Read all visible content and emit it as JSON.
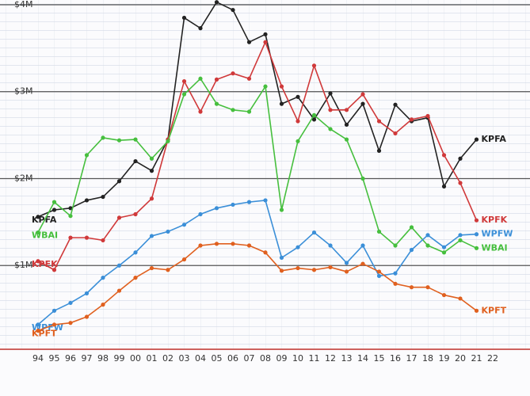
{
  "chart_data": {
    "type": "line",
    "categories": [
      "94",
      "95",
      "96",
      "97",
      "98",
      "99",
      "00",
      "01",
      "02",
      "03",
      "04",
      "05",
      "06",
      "07",
      "08",
      "09",
      "10",
      "11",
      "12",
      "13",
      "14",
      "15",
      "16",
      "17",
      "18",
      "19",
      "20",
      "21",
      "22"
    ],
    "series": [
      {
        "name": "KPFA",
        "color": "#222222",
        "values": [
          1.56,
          1.64,
          1.66,
          1.75,
          1.79,
          1.97,
          2.2,
          2.09,
          2.45,
          3.85,
          3.73,
          4.03,
          3.94,
          3.57,
          3.66,
          2.86,
          2.94,
          2.68,
          2.98,
          2.62,
          2.86,
          2.32,
          2.85,
          2.66,
          2.7,
          1.91,
          2.23,
          2.45,
          null
        ]
      },
      {
        "name": "KPFK",
        "color": "#d0393a",
        "values": [
          1.05,
          0.95,
          1.32,
          1.32,
          1.29,
          1.55,
          1.59,
          1.77,
          2.45,
          3.12,
          2.77,
          3.14,
          3.21,
          3.15,
          3.57,
          3.06,
          2.66,
          3.3,
          2.79,
          2.79,
          2.97,
          2.66,
          2.52,
          2.68,
          2.72,
          2.27,
          1.95,
          1.52,
          null
        ]
      },
      {
        "name": "WBAI",
        "color": "#46bf3e",
        "values": [
          1.38,
          1.73,
          1.57,
          2.27,
          2.47,
          2.44,
          2.45,
          2.23,
          2.43,
          2.97,
          3.15,
          2.86,
          2.79,
          2.77,
          3.06,
          1.64,
          2.43,
          2.73,
          2.57,
          2.45,
          2.0,
          1.39,
          1.23,
          1.44,
          1.23,
          1.15,
          1.29,
          1.2,
          null
        ]
      },
      {
        "name": "WPFW",
        "color": "#3b8fd8",
        "values": [
          0.32,
          0.48,
          0.57,
          0.68,
          0.86,
          1.0,
          1.15,
          1.34,
          1.39,
          1.47,
          1.59,
          1.66,
          1.7,
          1.73,
          1.75,
          1.09,
          1.21,
          1.38,
          1.23,
          1.03,
          1.23,
          0.88,
          0.91,
          1.18,
          1.35,
          1.21,
          1.35,
          1.36,
          null
        ]
      },
      {
        "name": "KPFT",
        "color": "#e0601f",
        "values": [
          0.25,
          0.32,
          0.34,
          0.41,
          0.55,
          0.71,
          0.86,
          0.97,
          0.95,
          1.07,
          1.23,
          1.25,
          1.25,
          1.23,
          1.15,
          0.94,
          0.97,
          0.95,
          0.98,
          0.93,
          1.02,
          0.93,
          0.79,
          0.75,
          0.75,
          0.66,
          0.62,
          0.48,
          null
        ]
      }
    ],
    "ylim": [
      0,
      4.05
    ],
    "yticks": [
      {
        "value": 1,
        "label": "$1M"
      },
      {
        "value": 2,
        "label": "$2M"
      },
      {
        "value": 3,
        "label": "$3M"
      },
      {
        "value": 4,
        "label": "$4M"
      }
    ],
    "grid": true
  }
}
